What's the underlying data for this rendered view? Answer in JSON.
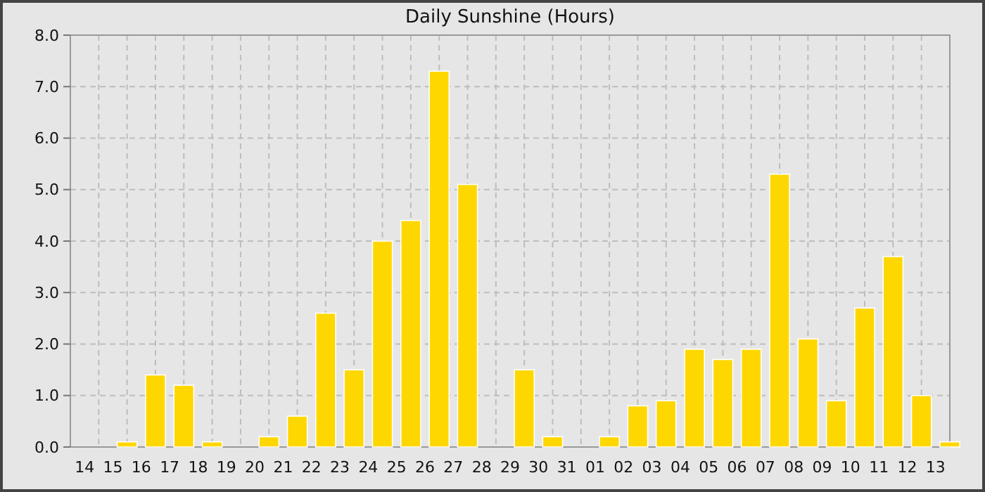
{
  "chart_data": {
    "type": "bar",
    "title": "Daily Sunshine (Hours)",
    "x": [
      "--07-16",
      "--07-17",
      "--07-18",
      "--07-19",
      "--07-21",
      "--07-22",
      "--07-23",
      "--07-24",
      "--07-25",
      "--07-26",
      "--07-27",
      "--07-28",
      "--07-30",
      "--07-31",
      "--08-02",
      "--08-03",
      "--08-04",
      "--08-05",
      "--08-06",
      "--08-07",
      "--08-08",
      "--08-09",
      "--08-10",
      "--08-11",
      "--08-12",
      "--08-13",
      "--08-14"
    ],
    "values": [
      0.1,
      1.4,
      1.2,
      0.1,
      0.2,
      0.6,
      2.6,
      1.5,
      4.0,
      4.4,
      7.3,
      5.1,
      1.5,
      0.2,
      0.2,
      0.8,
      0.9,
      1.9,
      1.7,
      1.9,
      5.3,
      2.1,
      0.9,
      2.7,
      3.7,
      1.0,
      0.1
    ],
    "color": "#ffd700",
    "xlim": [
      "--07-14",
      "--08-14"
    ],
    "xticks": [
      {
        "value": "--07-14T12:00",
        "label": "14"
      },
      {
        "value": "--07-15T12:00",
        "label": "15"
      },
      {
        "value": "--07-16T12:00",
        "label": "16"
      },
      {
        "value": "--07-17T12:00",
        "label": "17"
      },
      {
        "value": "--07-18T12:00",
        "label": "18"
      },
      {
        "value": "--07-19T12:00",
        "label": "19"
      },
      {
        "value": "--07-20T12:00",
        "label": "20"
      },
      {
        "value": "--07-21T12:00",
        "label": "21"
      },
      {
        "value": "--07-22T12:00",
        "label": "22"
      },
      {
        "value": "--07-23T12:00",
        "label": "23"
      },
      {
        "value": "--07-24T12:00",
        "label": "24"
      },
      {
        "value": "--07-25T12:00",
        "label": "25"
      },
      {
        "value": "--07-26T12:00",
        "label": "26"
      },
      {
        "value": "--07-27T12:00",
        "label": "27"
      },
      {
        "value": "--07-28T12:00",
        "label": "28"
      },
      {
        "value": "--07-29T12:00",
        "label": "29"
      },
      {
        "value": "--07-30T12:00",
        "label": "30"
      },
      {
        "value": "--07-31T12:00",
        "label": "31"
      },
      {
        "value": "--08-01T12:00",
        "label": "01"
      },
      {
        "value": "--08-02T12:00",
        "label": "02"
      },
      {
        "value": "--08-03T12:00",
        "label": "03"
      },
      {
        "value": "--08-04T12:00",
        "label": "04"
      },
      {
        "value": "--08-05T12:00",
        "label": "05"
      },
      {
        "value": "--08-06T12:00",
        "label": "06"
      },
      {
        "value": "--08-07T12:00",
        "label": "07"
      },
      {
        "value": "--08-08T12:00",
        "label": "08"
      },
      {
        "value": "--08-09T12:00",
        "label": "09"
      },
      {
        "value": "--08-10T12:00",
        "label": "10"
      },
      {
        "value": "--08-11T12:00",
        "label": "11"
      },
      {
        "value": "--08-12T12:00",
        "label": "12"
      },
      {
        "value": "--08-13T12:00",
        "label": "13"
      },
      {
        "value": "--07-15",
        "label": null
      },
      {
        "value": "--07-16",
        "label": null
      },
      {
        "value": "--07-17",
        "label": null
      },
      {
        "value": "--07-18",
        "label": null
      },
      {
        "value": "--07-19",
        "label": null
      },
      {
        "value": "--07-20",
        "label": null
      },
      {
        "value": "--07-21",
        "label": null
      },
      {
        "value": "--07-22",
        "label": null
      },
      {
        "value": "--07-23",
        "label": null
      },
      {
        "value": "--07-24",
        "label": null
      },
      {
        "value": "--07-25",
        "label": null
      },
      {
        "value": "--07-26",
        "label": null
      },
      {
        "value": "--07-27",
        "label": null
      },
      {
        "value": "--07-28",
        "label": null
      },
      {
        "value": "--07-29",
        "label": null
      },
      {
        "value": "--07-30",
        "label": null
      },
      {
        "value": "--07-31",
        "label": null
      },
      {
        "value": "--08-01",
        "label": null
      },
      {
        "value": "--08-02",
        "label": null
      },
      {
        "value": "--08-03",
        "label": null
      },
      {
        "value": "--08-04",
        "label": null
      },
      {
        "value": "--08-05",
        "label": null
      },
      {
        "value": "--08-06",
        "label": null
      },
      {
        "value": "--08-07",
        "label": null
      },
      {
        "value": "--08-08",
        "label": null
      },
      {
        "value": "--08-09",
        "label": null
      },
      {
        "value": "--08-10",
        "label": null
      },
      {
        "value": "--08-11",
        "label": null
      },
      {
        "value": "--08-12",
        "label": null
      },
      {
        "value": "--08-13",
        "label": null
      }
    ],
    "ylim": [
      0,
      8
    ],
    "yticks": [
      {
        "value": 0,
        "label": "0.0"
      },
      {
        "value": 1,
        "label": "1.0"
      },
      {
        "value": 2,
        "label": "2.0"
      },
      {
        "value": 3,
        "label": "3.0"
      },
      {
        "value": 4,
        "label": "4.0"
      },
      {
        "value": 5,
        "label": "5.0"
      },
      {
        "value": 6,
        "label": "6.0"
      },
      {
        "value": 7,
        "label": "7.0"
      },
      {
        "value": 8,
        "label": "8.0"
      }
    ],
    "grid": true
  }
}
